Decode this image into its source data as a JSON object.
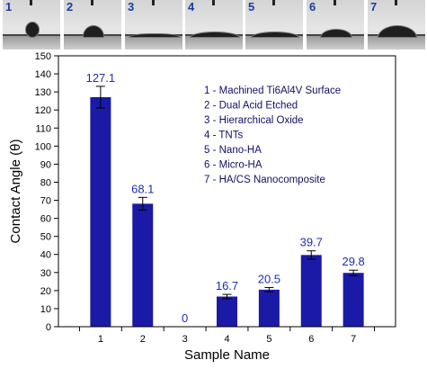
{
  "photos": [
    {
      "label": "1"
    },
    {
      "label": "2"
    },
    {
      "label": "3"
    },
    {
      "label": "4"
    },
    {
      "label": "5"
    },
    {
      "label": "6"
    },
    {
      "label": "7"
    }
  ],
  "chart_data": {
    "type": "bar",
    "categories": [
      "1",
      "2",
      "3",
      "4",
      "5",
      "6",
      "7"
    ],
    "values": [
      127.1,
      68.1,
      0,
      16.7,
      20.5,
      39.7,
      29.8
    ],
    "value_labels": [
      "127.1",
      "68.1",
      "0",
      "16.7",
      "20.5",
      "39.7",
      "29.8"
    ],
    "errors": [
      6.0,
      3.5,
      0,
      1.2,
      1.2,
      2.3,
      1.5
    ],
    "xlabel": "Sample Name",
    "ylabel": "Contact Angle (θ)",
    "ylim": [
      0,
      150
    ],
    "yticks": [
      0,
      10,
      20,
      30,
      40,
      50,
      60,
      70,
      80,
      90,
      100,
      110,
      120,
      130,
      140,
      150
    ],
    "grid": false,
    "legend_position": "top-right",
    "legend": [
      "1 - Machined Ti6Al4V Surface",
      "2 - Dual Acid Etched",
      "3 - Hierarchical Oxide",
      "4 - TNTs",
      "5 - Nano-HA",
      "6 - Micro-HA",
      "7 - HA/CS Nanocomposite"
    ],
    "colors": {
      "bar": "#1a1aa6",
      "label": "#1f2fb0",
      "legend_text": "#111166"
    }
  }
}
